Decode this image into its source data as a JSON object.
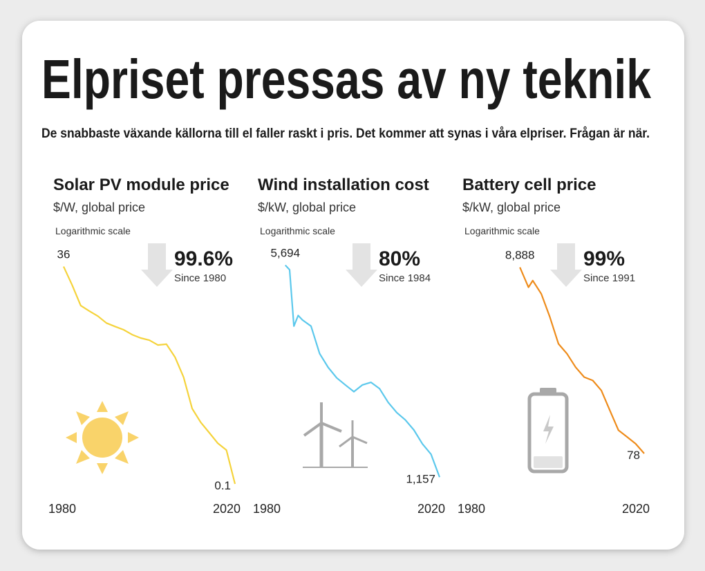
{
  "title": "Elpriset pressas av ny teknik",
  "subtitle": "De snabbaste växande källorna till el faller raskt i pris. Det kommer att synas i våra elpriser. Frågan är när.",
  "chart_data": [
    {
      "type": "line",
      "title": "Solar PV module price",
      "subtitle": "$/W, global price",
      "note": "Logarithmic scale",
      "annotation": "99.6%",
      "annotation_note": "Since 1980",
      "x": [
        1980,
        1982,
        1984,
        1986,
        1988,
        1990,
        1992,
        1994,
        1996,
        1998,
        2000,
        2002,
        2004,
        2006,
        2008,
        2010,
        2012,
        2014,
        2016,
        2018,
        2020
      ],
      "values": [
        36,
        21.8,
        12.5,
        10.8,
        9.4,
        7.8,
        7.1,
        6.5,
        5.7,
        5.2,
        4.9,
        4.3,
        4.4,
        3.1,
        1.8,
        0.77,
        0.53,
        0.4,
        0.3,
        0.25,
        0.1
      ],
      "value_labels": [
        "36",
        null,
        null,
        null,
        null,
        null,
        null,
        null,
        null,
        null,
        null,
        null,
        null,
        null,
        null,
        null,
        null,
        null,
        null,
        null,
        "0.1"
      ],
      "color": "#f5d33b",
      "log_scale": true,
      "xlim": [
        1980,
        2020
      ],
      "xticks": [
        1980,
        2020
      ],
      "ylim": [
        0.1,
        40
      ]
    },
    {
      "type": "line",
      "title": "Wind installation cost",
      "subtitle": "$/kW, global price",
      "note": "Logarithmic scale",
      "annotation": "80%",
      "annotation_note": "Since 1984",
      "x": [
        1984,
        1985,
        1986,
        1987,
        1988,
        1990,
        1992,
        1994,
        1996,
        1998,
        2000,
        2002,
        2004,
        2006,
        2008,
        2010,
        2012,
        2014,
        2016,
        2018,
        2020
      ],
      "values": [
        5694,
        5500,
        3600,
        3900,
        3770,
        3600,
        2930,
        2640,
        2440,
        2315,
        2200,
        2315,
        2360,
        2250,
        2030,
        1880,
        1780,
        1650,
        1485,
        1375,
        1157
      ],
      "value_labels": [
        "5,694",
        null,
        null,
        null,
        null,
        null,
        null,
        null,
        null,
        null,
        null,
        null,
        null,
        null,
        null,
        null,
        null,
        null,
        null,
        null,
        "1,157"
      ],
      "color": "#5bc8ec",
      "log_scale": true,
      "xlim": [
        1980,
        2020
      ],
      "xticks": [
        1980,
        2020
      ],
      "ylim": [
        1100,
        5800
      ]
    },
    {
      "type": "line",
      "title": "Battery cell price",
      "subtitle": "$/kW, global price",
      "note": "Logarithmic scale",
      "annotation": "99%",
      "annotation_note": "Since 1991",
      "x": [
        1991,
        1993,
        1994,
        1996,
        1998,
        2000,
        2002,
        2004,
        2006,
        2008,
        2010,
        2012,
        2014,
        2016,
        2018,
        2020
      ],
      "values": [
        8888,
        5350,
        6340,
        4520,
        2500,
        1270,
        985,
        700,
        545,
        500,
        388,
        233,
        141,
        119,
        100,
        78
      ],
      "value_labels": [
        "8,888",
        null,
        null,
        null,
        null,
        null,
        null,
        null,
        null,
        null,
        null,
        null,
        null,
        null,
        null,
        "78"
      ],
      "color": "#ee8b1a",
      "log_scale": true,
      "xlim": [
        1980,
        2020
      ],
      "xticks": [
        1980,
        2020
      ],
      "ylim": [
        36,
        10000
      ]
    }
  ]
}
